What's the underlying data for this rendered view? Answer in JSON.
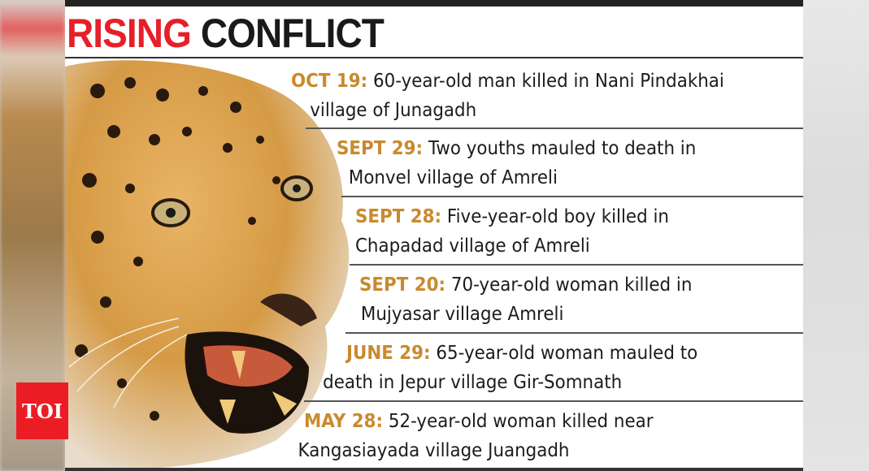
{
  "title": {
    "part1": "RISING",
    "part2": "CONFLICT"
  },
  "colors": {
    "title_red": "#e5202a",
    "date_orange": "#c98a2e",
    "logo_red": "#ec1c24"
  },
  "image": {
    "subject": "leopard-snarling"
  },
  "incidents": [
    {
      "date": "OCT 19:",
      "line1": "60-year-old man killed in Nani Pindakhai",
      "line2": "village of Junagadh"
    },
    {
      "date": "SEPT 29:",
      "line1": "Two youths mauled to death in",
      "line2": "Monvel village of Amreli"
    },
    {
      "date": "SEPT 28:",
      "line1": "Five-year-old boy killed in",
      "line2": "Chapadad village of Amreli"
    },
    {
      "date": "SEPT 20:",
      "line1": "70-year-old woman killed in",
      "line2": "Mujyasar village Amreli"
    },
    {
      "date": "JUNE 29:",
      "line1": "65-year-old woman mauled to",
      "line2": "death in Jepur village Gir-Somnath"
    },
    {
      "date": "MAY 28:",
      "line1": "52-year-old woman killed near",
      "line2": "Kangasiayada village Juangadh"
    }
  ],
  "logo": {
    "text": "TOI"
  }
}
